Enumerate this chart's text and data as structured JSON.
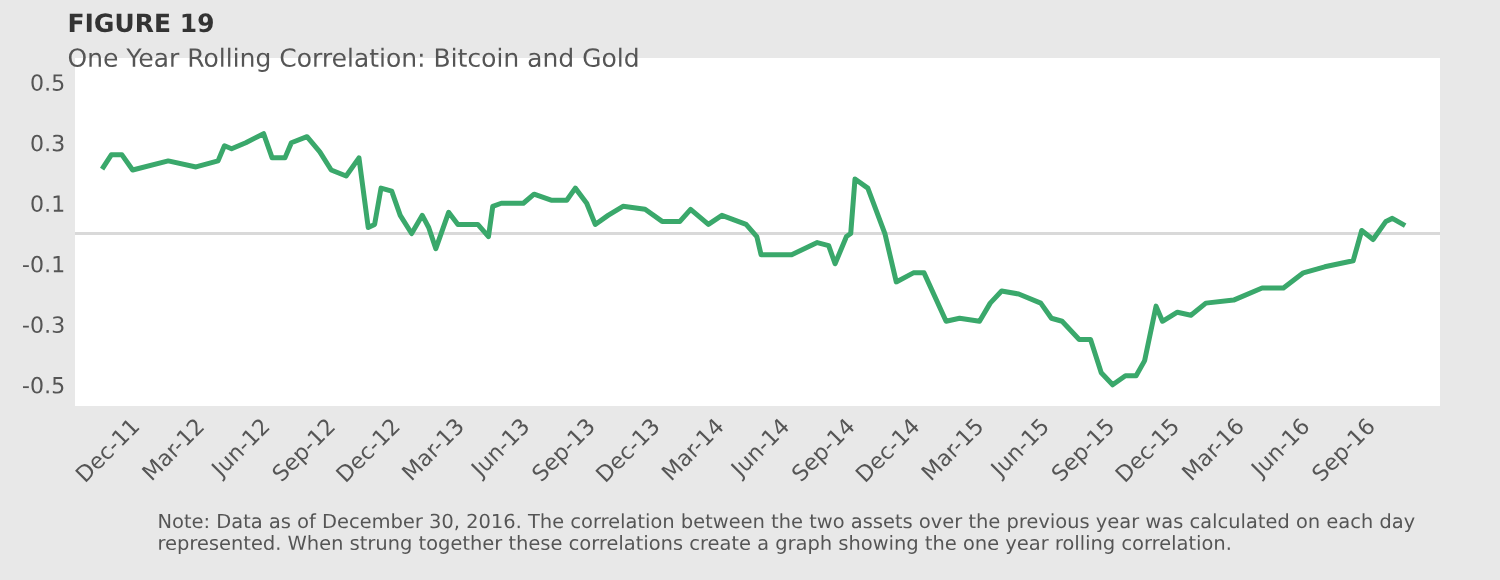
{
  "chart_data": {
    "type": "line",
    "title": "FIGURE 19",
    "subtitle": "One Year Rolling Correlation: Bitcoin and Gold",
    "annotations": [
      "Note: Data as of December 30, 2016. The correlation between the two assets over the previous year was calculated on each day represented. When strung together these correlations create a graph showing the one year rolling correlation."
    ],
    "x": [
      "2011-10-26",
      "2011-11-06",
      "2011-11-21",
      "2011-12-06",
      "2012-01-25",
      "2012-03-04",
      "2012-04-04",
      "2012-04-13",
      "2012-04-23",
      "2012-05-13",
      "2012-06-07",
      "2012-06-19",
      "2012-07-07",
      "2012-07-16",
      "2012-08-07",
      "2012-08-25",
      "2012-09-10",
      "2012-10-01",
      "2012-10-19",
      "2012-11-01",
      "2012-11-10",
      "2012-11-19",
      "2012-12-04",
      "2012-12-16",
      "2013-01-01",
      "2013-01-16",
      "2013-01-25",
      "2013-02-04",
      "2013-02-22",
      "2013-03-07",
      "2013-04-04",
      "2013-04-19",
      "2013-04-25",
      "2013-05-07",
      "2013-06-07",
      "2013-06-22",
      "2013-07-16",
      "2013-08-07",
      "2013-08-19",
      "2013-09-04",
      "2013-09-16",
      "2013-10-04",
      "2013-10-25",
      "2013-11-25",
      "2013-12-19",
      "2014-01-13",
      "2014-01-28",
      "2014-02-22",
      "2014-03-13",
      "2014-04-16",
      "2014-05-01",
      "2014-05-07",
      "2014-06-19",
      "2014-07-25",
      "2014-08-10",
      "2014-08-19",
      "2014-09-04",
      "2014-09-10",
      "2014-09-16",
      "2014-10-04",
      "2014-10-28",
      "2014-11-13",
      "2014-12-07",
      "2014-12-22",
      "2015-01-22",
      "2015-02-10",
      "2015-03-10",
      "2015-03-25",
      "2015-04-10",
      "2015-05-04",
      "2015-06-04",
      "2015-06-19",
      "2015-07-04",
      "2015-07-28",
      "2015-08-13",
      "2015-08-28",
      "2015-09-13",
      "2015-10-01",
      "2015-10-16",
      "2015-10-28",
      "2015-11-13",
      "2015-11-22",
      "2015-12-13",
      "2016-01-01",
      "2016-01-22",
      "2016-03-01",
      "2016-04-10",
      "2016-05-10",
      "2016-06-07",
      "2016-07-07",
      "2016-08-16",
      "2016-08-28",
      "2016-09-13",
      "2016-10-01",
      "2016-10-10",
      "2016-10-25"
    ],
    "series": [
      {
        "color": "#3aa86b",
        "values": [
          0.22,
          0.26,
          0.26,
          0.21,
          0.24,
          0.22,
          0.24,
          0.29,
          0.28,
          0.3,
          0.33,
          0.25,
          0.25,
          0.3,
          0.32,
          0.27,
          0.21,
          0.19,
          0.25,
          0.02,
          0.03,
          0.15,
          0.14,
          0.06,
          0.0,
          0.06,
          0.02,
          -0.05,
          0.07,
          0.03,
          0.03,
          -0.01,
          0.09,
          0.1,
          0.1,
          0.13,
          0.11,
          0.11,
          0.15,
          0.1,
          0.03,
          0.06,
          0.09,
          0.08,
          0.04,
          0.04,
          0.08,
          0.03,
          0.06,
          0.03,
          -0.01,
          -0.07,
          -0.07,
          -0.03,
          -0.04,
          -0.1,
          -0.01,
          0.0,
          0.18,
          0.15,
          0.0,
          -0.16,
          -0.13,
          -0.13,
          -0.29,
          -0.28,
          -0.29,
          -0.23,
          -0.19,
          -0.2,
          -0.23,
          -0.28,
          -0.29,
          -0.35,
          -0.35,
          -0.46,
          -0.5,
          -0.47,
          -0.47,
          -0.42,
          -0.24,
          -0.29,
          -0.26,
          -0.27,
          -0.23,
          -0.22,
          -0.18,
          -0.18,
          -0.13,
          -0.11,
          -0.09,
          0.01,
          -0.02,
          0.04,
          0.05,
          0.03
        ]
      }
    ],
    "xlim": [
      "2011-09-16",
      "2016-12-16"
    ],
    "xticks": [
      {
        "value": "2011-12-01",
        "label": "Dec-11"
      },
      {
        "value": "2012-03-01",
        "label": "Mar-12"
      },
      {
        "value": "2012-06-01",
        "label": "Jun-12"
      },
      {
        "value": "2012-09-01",
        "label": "Sep-12"
      },
      {
        "value": "2012-12-01",
        "label": "Dec-12"
      },
      {
        "value": "2013-03-01",
        "label": "Mar-13"
      },
      {
        "value": "2013-06-01",
        "label": "Jun-13"
      },
      {
        "value": "2013-09-01",
        "label": "Sep-13"
      },
      {
        "value": "2013-12-01",
        "label": "Dec-13"
      },
      {
        "value": "2014-03-01",
        "label": "Mar-14"
      },
      {
        "value": "2014-06-01",
        "label": "Jun-14"
      },
      {
        "value": "2014-09-01",
        "label": "Sep-14"
      },
      {
        "value": "2014-12-01",
        "label": "Dec-14"
      },
      {
        "value": "2015-03-01",
        "label": "Mar-15"
      },
      {
        "value": "2015-06-01",
        "label": "Jun-15"
      },
      {
        "value": "2015-09-01",
        "label": "Sep-15"
      },
      {
        "value": "2015-12-01",
        "label": "Dec-15"
      },
      {
        "value": "2016-03-01",
        "label": "Mar-16"
      },
      {
        "value": "2016-06-01",
        "label": "Jun-16"
      },
      {
        "value": "2016-09-01",
        "label": "Sep-16"
      }
    ],
    "ylim": [
      -0.57,
      0.58
    ],
    "yticks": [
      0.5,
      0.3,
      0.1,
      -0.1,
      -0.3,
      -0.5
    ],
    "ref_lines": [
      {
        "axis": "y",
        "value": 0,
        "color": "#d9d9d9"
      }
    ],
    "grid": false,
    "marker": "none",
    "line_style": "solid"
  }
}
